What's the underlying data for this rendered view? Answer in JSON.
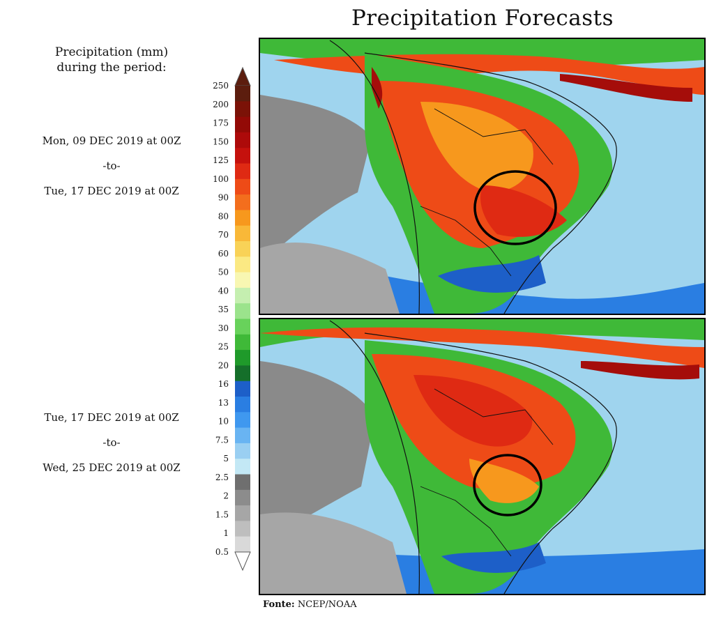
{
  "title": "Precipitation Forecasts",
  "legend": {
    "heading_line1": "Precipitation (mm)",
    "heading_line2": "during the period:",
    "ticks": [
      "250",
      "200",
      "175",
      "150",
      "125",
      "100",
      "90",
      "80",
      "70",
      "60",
      "50",
      "40",
      "35",
      "30",
      "25",
      "20",
      "16",
      "13",
      "10",
      "7.5",
      "5",
      "2.5",
      "2",
      "1.5",
      "1",
      "0.5"
    ],
    "colors": [
      "#5c1d0e",
      "#7b1207",
      "#930a06",
      "#ad0a0a",
      "#c5110d",
      "#df2a13",
      "#ee4b17",
      "#f36e1d",
      "#f7981d",
      "#f9b838",
      "#f9d257",
      "#fbe983",
      "#f8f7b2",
      "#c5efb0",
      "#9be38c",
      "#68d25b",
      "#3fb938",
      "#1f9a2a",
      "#156f2a",
      "#1d5fc8",
      "#2a7ee2",
      "#3f98ef",
      "#69b4f2",
      "#9acff2",
      "#c3e8f5",
      "#6f6f6f",
      "#8c8c8c",
      "#a6a6a6",
      "#bebebe",
      "#d9d9d9"
    ]
  },
  "period1": {
    "start": "Mon, 09 DEC 2019 at 00Z",
    "sep": "-to-",
    "end": "Tue, 17 DEC 2019 at 00Z"
  },
  "period2": {
    "start": "Tue, 17 DEC 2019 at 00Z",
    "sep": "-to-",
    "end": "Wed, 25 DEC 2019 at 00Z"
  },
  "source": {
    "label": "Fonte:",
    "value": "NCEP/NOAA"
  },
  "map": {
    "ocean": "#9fd4ee",
    "land_dry": "#8a8a8a",
    "heavy": "#e8431a",
    "extreme": "#a50d0a",
    "wet": "#3fb938",
    "circle": "#000000"
  }
}
